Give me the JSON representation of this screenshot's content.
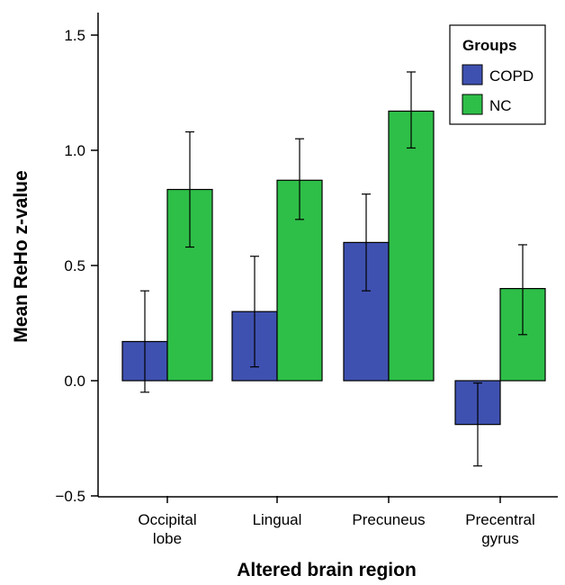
{
  "chart_data": {
    "type": "bar",
    "title": "",
    "xlabel": "Altered brain region",
    "ylabel": "Mean ReHo z-value",
    "ylim": [
      -0.5,
      1.6
    ],
    "yticks": [
      "1.5",
      "1.0",
      "0.5",
      "0.0",
      "−0.5"
    ],
    "ytick_values": [
      1.5,
      1.0,
      0.5,
      0.0,
      -0.5
    ],
    "categories": [
      [
        "Occipital",
        "lobe"
      ],
      [
        "Lingual"
      ],
      [
        "Precuneus"
      ],
      [
        "Precentral",
        "gyrus"
      ]
    ],
    "series": [
      {
        "name": "COPD",
        "color": "#3f51b0",
        "values": [
          0.17,
          0.3,
          0.6,
          -0.19
        ],
        "err_low": [
          -0.05,
          0.06,
          0.39,
          -0.37
        ],
        "err_high": [
          0.39,
          0.54,
          0.81,
          -0.01
        ]
      },
      {
        "name": "NC",
        "color": "#2ebf48",
        "values": [
          0.83,
          0.87,
          1.17,
          0.4
        ],
        "err_low": [
          0.58,
          0.7,
          1.01,
          0.2
        ],
        "err_high": [
          1.08,
          1.05,
          1.34,
          0.59
        ]
      }
    ],
    "legend": {
      "title": "Groups",
      "position": "top-right"
    },
    "grid": false
  }
}
